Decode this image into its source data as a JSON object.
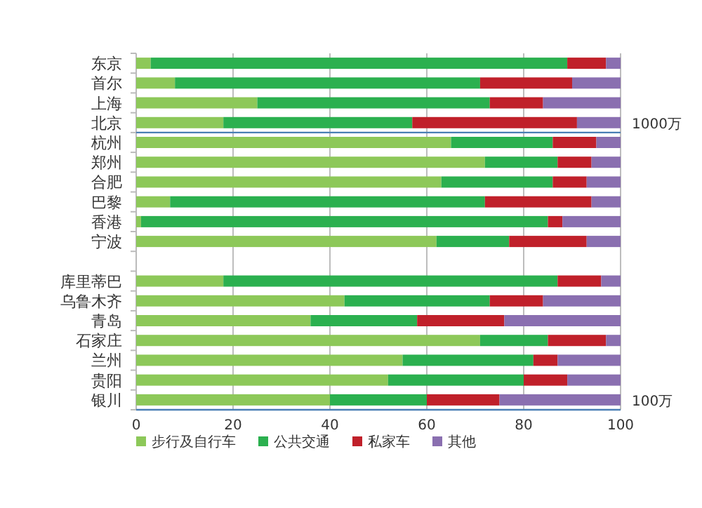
{
  "chart_data": {
    "type": "bar",
    "orientation": "horizontal",
    "stacked": true,
    "categories": [
      "东京",
      "首尔",
      "上海",
      "北京",
      "杭州",
      "郑州",
      "合肥",
      "巴黎",
      "香港",
      "宁波",
      null,
      "库里蒂巴",
      "乌鲁木齐",
      "青岛",
      "石家庄",
      "兰州",
      "贵阳",
      "银川"
    ],
    "series": [
      {
        "name": "步行及自行车",
        "color": "#8dc859",
        "values": [
          3,
          8,
          25,
          18,
          65,
          72,
          63,
          7,
          1,
          62,
          null,
          18,
          43,
          36,
          71,
          55,
          52,
          40
        ]
      },
      {
        "name": "公共交通",
        "color": "#2bb04f",
        "values": [
          86,
          63,
          48,
          39,
          21,
          15,
          23,
          65,
          84,
          15,
          null,
          69,
          30,
          22,
          14,
          27,
          28,
          20
        ]
      },
      {
        "name": "私家车",
        "color": "#c0202a",
        "values": [
          8,
          19,
          11,
          34,
          9,
          7,
          7,
          22,
          3,
          16,
          null,
          9,
          11,
          18,
          12,
          5,
          9,
          15
        ]
      },
      {
        "name": "其他",
        "color": "#8a6fb0",
        "values": [
          3,
          10,
          16,
          9,
          5,
          6,
          7,
          6,
          12,
          7,
          null,
          4,
          16,
          24,
          3,
          13,
          11,
          25
        ]
      }
    ],
    "xlim": [
      0,
      100
    ],
    "xticks": [
      0,
      20,
      40,
      60,
      80,
      100
    ],
    "grid": "x",
    "legend": "bottom",
    "ref_lines": [
      {
        "axis": "y",
        "value": "北京",
        "label": "1000万",
        "color": "#4a7fb5"
      }
    ],
    "annotations": [
      "100万"
    ]
  }
}
